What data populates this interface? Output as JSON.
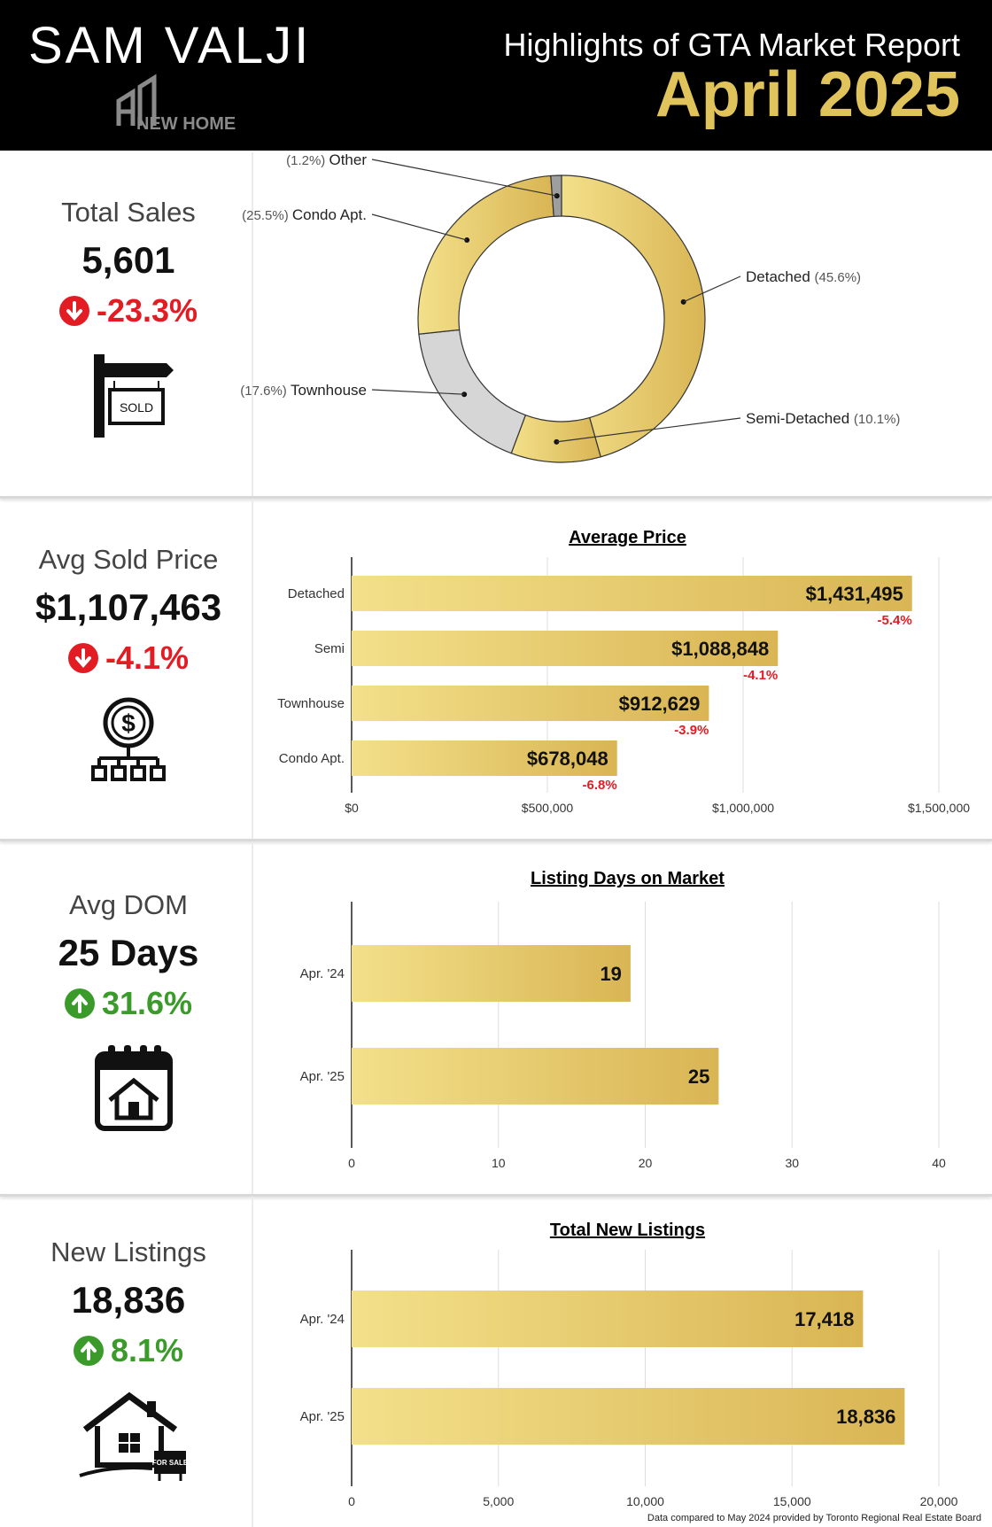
{
  "header": {
    "brand_name": "SAM VALJI",
    "brand_logo_text": "NEW HOME",
    "report_title": "Highlights of GTA Market Report",
    "report_month": "April 2025"
  },
  "stats": {
    "total_sales": {
      "label": "Total Sales",
      "value": "5,601",
      "change": "-23.3%",
      "direction": "down",
      "icon": "sold-sign-icon",
      "icon_text": "SOLD"
    },
    "avg_price": {
      "label": "Avg Sold Price",
      "value": "$1,107,463",
      "change": "-4.1%",
      "direction": "down",
      "icon": "dollar-network-icon"
    },
    "avg_dom": {
      "label": "Avg DOM",
      "value": "25 Days",
      "change": "31.6%",
      "direction": "up",
      "icon": "calendar-house-icon"
    },
    "new_listings": {
      "label": "New Listings",
      "value": "18,836",
      "change": "8.1%",
      "direction": "up",
      "icon": "house-for-sale-icon",
      "icon_text": "FOR SALE"
    }
  },
  "colors": {
    "gold": "#e0c35a",
    "red": "#e31b23",
    "green": "#3a9a2a",
    "gray_slice": "#cfcfcf"
  },
  "chart_data": [
    {
      "type": "pie",
      "title": "",
      "labels": [
        "Detached",
        "Semi-Detached",
        "Townhouse",
        "Condo Apt.",
        "Other"
      ],
      "values": [
        45.6,
        10.1,
        17.6,
        25.5,
        1.2
      ],
      "value_labels": [
        "(45.6%)",
        "(10.1%)",
        "(17.6%)",
        "(25.5%)",
        "(1.2%)"
      ]
    },
    {
      "type": "bar",
      "title": "Average Price",
      "categories": [
        "Detached",
        "Semi",
        "Townhouse",
        "Condo Apt."
      ],
      "values": [
        1431495,
        1088848,
        912629,
        678048
      ],
      "value_labels": [
        "$1,431,495",
        "$1,088,848",
        "$912,629",
        "$678,048"
      ],
      "changes": [
        "-5.4%",
        "-4.1%",
        "-3.9%",
        "-6.8%"
      ],
      "xlim": [
        0,
        1500000
      ],
      "xticks": [
        0,
        500000,
        1000000,
        1500000
      ],
      "xtick_labels": [
        "$0",
        "$500,000",
        "$1,000,000",
        "$1,500,000"
      ]
    },
    {
      "type": "bar",
      "title": "Listing Days on Market",
      "categories": [
        "Apr. '24",
        "Apr. '25"
      ],
      "values": [
        19,
        25
      ],
      "value_labels": [
        "19",
        "25"
      ],
      "xlim": [
        0,
        40
      ],
      "xticks": [
        0,
        10,
        20,
        30,
        40
      ],
      "xtick_labels": [
        "0",
        "10",
        "20",
        "30",
        "40"
      ]
    },
    {
      "type": "bar",
      "title": "Total New Listings",
      "categories": [
        "Apr. '24",
        "Apr. '25"
      ],
      "values": [
        17418,
        18836
      ],
      "value_labels": [
        "17,418",
        "18,836"
      ],
      "xlim": [
        0,
        20000
      ],
      "xticks": [
        0,
        5000,
        10000,
        15000,
        20000
      ],
      "xtick_labels": [
        "0",
        "5,000",
        "10,000",
        "15,000",
        "20,000"
      ]
    }
  ],
  "footnote": "Data compared to May 2024 provided by Toronto Regional Real Estate Board"
}
